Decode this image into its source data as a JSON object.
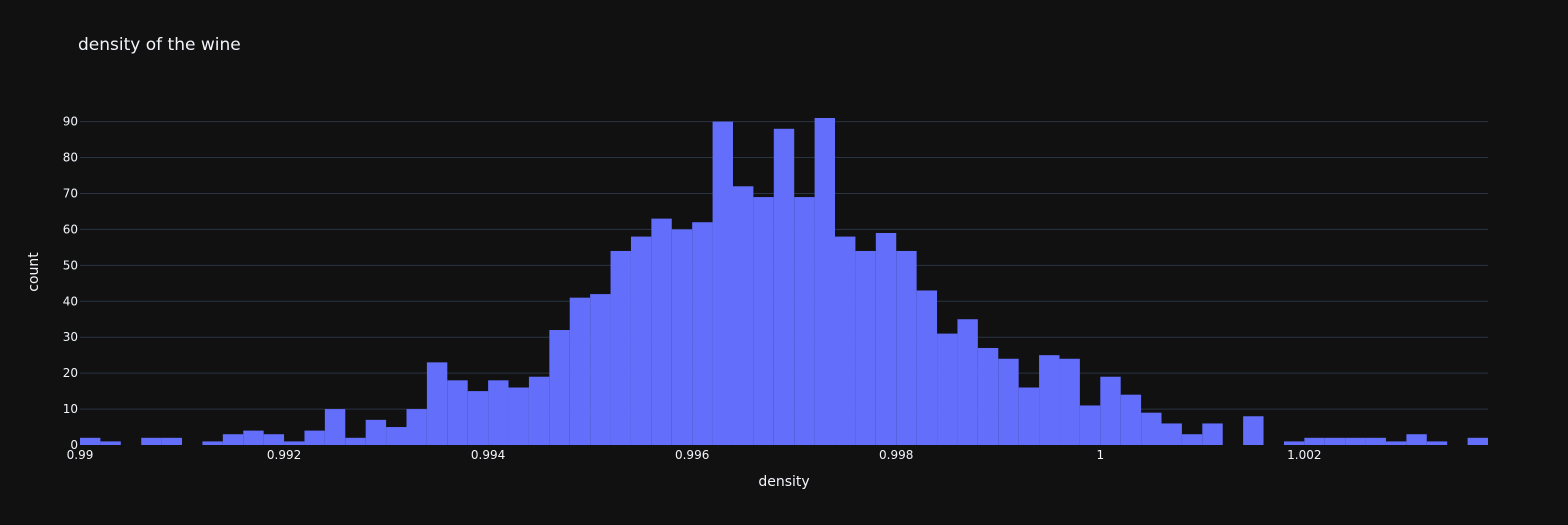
{
  "chart_data": {
    "type": "bar",
    "title": "density of the wine",
    "xlabel": "density",
    "ylabel": "count",
    "bin_start": 0.99,
    "bin_width": 0.0002,
    "xlim": [
      0.99,
      1.0038
    ],
    "ylim": [
      0,
      91
    ],
    "x_ticks": [
      0.99,
      0.992,
      0.994,
      0.996,
      0.998,
      1,
      1.002
    ],
    "x_tick_labels": [
      "0.99",
      "0.992",
      "0.994",
      "0.996",
      "0.998",
      "1",
      "1.002"
    ],
    "y_ticks": [
      0,
      10,
      20,
      30,
      40,
      50,
      60,
      70,
      80,
      90
    ],
    "y_tick_labels": [
      "0",
      "10",
      "20",
      "30",
      "40",
      "50",
      "60",
      "70",
      "80",
      "90"
    ],
    "values": [
      2,
      1,
      0,
      2,
      2,
      0,
      1,
      3,
      4,
      3,
      1,
      4,
      10,
      2,
      7,
      5,
      10,
      23,
      18,
      15,
      18,
      16,
      19,
      32,
      41,
      42,
      54,
      58,
      63,
      60,
      62,
      90,
      72,
      69,
      88,
      69,
      91,
      58,
      54,
      59,
      54,
      43,
      31,
      35,
      27,
      24,
      16,
      25,
      24,
      11,
      19,
      14,
      9,
      6,
      3,
      6,
      0,
      8,
      0,
      1,
      2,
      2,
      2,
      2,
      1,
      3,
      1,
      0,
      2
    ],
    "grid": true,
    "colors": {
      "background": "#111111",
      "bar": "#636efa",
      "grid": "#283442",
      "text": "#f2f5fa"
    }
  }
}
